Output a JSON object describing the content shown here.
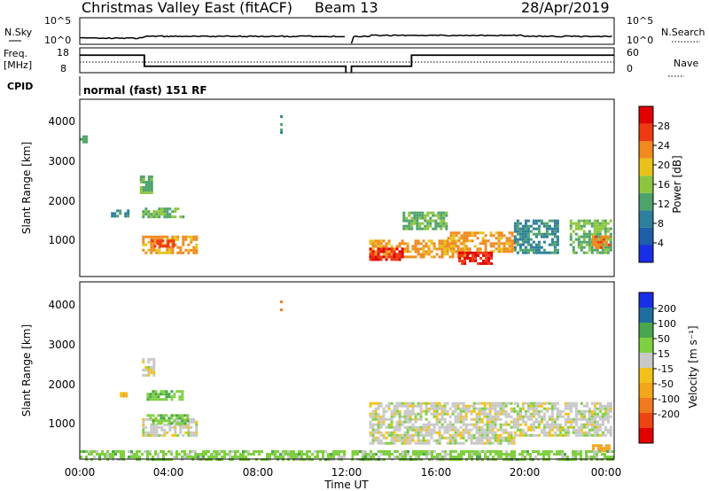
{
  "header": {
    "station": "Christmas Valley East (fitACF)",
    "beam": "Beam 13",
    "date": "28/Apr/2019"
  },
  "sky_panel": {
    "left_label": "N.Sky",
    "left_ticks": [
      "10^5",
      "10^0"
    ],
    "right_label": "N.Search",
    "right_ticks": [
      "10^5",
      "10^0"
    ]
  },
  "freq_panel": {
    "left_label_1": "Freq.",
    "left_label_2": "[MHz]",
    "left_ticks": [
      "18",
      "8"
    ],
    "right_label": "Nave",
    "right_ticks": [
      "60",
      "0"
    ]
  },
  "cpid_panel": {
    "label": "CPID",
    "program": "normal (fast) 151 RF"
  },
  "axes": {
    "x_ticks": [
      "00:00",
      "04:00",
      "08:00",
      "12:00",
      "16:00",
      "20:00",
      "00:00"
    ],
    "x_label": "Time UT",
    "y_label": "Slant Range [km]",
    "y_ticks": [
      "1000",
      "2000",
      "3000",
      "4000"
    ]
  },
  "power_scale": {
    "label": "Power [dB]",
    "ticks": [
      "4",
      "8",
      "12",
      "16",
      "20",
      "24",
      "28"
    ],
    "colors": [
      "#1a2ee6",
      "#1f5fa8",
      "#2e7f9c",
      "#4ea36a",
      "#8cc63f",
      "#e8c21c",
      "#f08a1e",
      "#ee3a12",
      "#e00000"
    ]
  },
  "velocity_scale": {
    "label": "Velocity [m s⁻¹]",
    "ticks": [
      "200",
      "100",
      "50",
      "15",
      "-15",
      "-50",
      "-100",
      "-200"
    ],
    "colors": [
      "#1a2ee6",
      "#1f6ea0",
      "#4aa64e",
      "#7ed040",
      "#c8c8c8",
      "#f2c21a",
      "#f3a51c",
      "#f0781e",
      "#ee4414",
      "#e00000"
    ]
  },
  "chart_data": {
    "type": "heatmap",
    "title": "Christmas Valley East (fitACF) Beam 13 28/Apr/2019",
    "xlabel": "Time UT",
    "ylabel": "Slant Range [km]",
    "xlim": [
      0,
      24
    ],
    "ylim": [
      180,
      4600
    ],
    "grid": false,
    "panels": [
      {
        "quantity": "Power",
        "unit": "dB",
        "color_range": [
          0,
          32
        ],
        "regions": [
          {
            "t_start": 0.0,
            "t_end": 0.3,
            "r_start": 3550,
            "r_end": 3700,
            "value": 12
          },
          {
            "t_start": 2.7,
            "t_end": 3.2,
            "r_start": 2300,
            "r_end": 2700,
            "value": 14
          },
          {
            "t_start": 1.4,
            "t_end": 2.2,
            "r_start": 1700,
            "r_end": 1850,
            "value": 10
          },
          {
            "t_start": 2.8,
            "t_end": 4.6,
            "r_start": 1650,
            "r_end": 1900,
            "value": 14
          },
          {
            "t_start": 2.8,
            "t_end": 5.2,
            "r_start": 800,
            "r_end": 1200,
            "value": 22
          },
          {
            "t_start": 3.2,
            "t_end": 4.2,
            "r_start": 950,
            "r_end": 1100,
            "value": 27
          },
          {
            "t_start": 9.0,
            "t_end": 9.1,
            "r_start": 3800,
            "r_end": 4200,
            "value": 12
          },
          {
            "t_start": 13.0,
            "t_end": 17.5,
            "r_start": 700,
            "r_end": 1100,
            "value": 22
          },
          {
            "t_start": 13.0,
            "t_end": 14.5,
            "r_start": 600,
            "r_end": 900,
            "value": 28
          },
          {
            "t_start": 14.5,
            "t_end": 16.5,
            "r_start": 1400,
            "r_end": 1800,
            "value": 14
          },
          {
            "t_start": 16.5,
            "t_end": 19.5,
            "r_start": 800,
            "r_end": 1300,
            "value": 22
          },
          {
            "t_start": 17.0,
            "t_end": 18.5,
            "r_start": 500,
            "r_end": 800,
            "value": 28
          },
          {
            "t_start": 19.5,
            "t_end": 21.5,
            "r_start": 800,
            "r_end": 1600,
            "value": 10
          },
          {
            "t_start": 22.0,
            "t_end": 23.9,
            "r_start": 800,
            "r_end": 1600,
            "value": 14
          },
          {
            "t_start": 23.0,
            "t_end": 23.8,
            "r_start": 900,
            "r_end": 1200,
            "value": 24
          }
        ]
      },
      {
        "quantity": "Velocity",
        "unit": "m s-1",
        "color_range": [
          -200,
          200
        ],
        "regions": [
          {
            "t_start": 2.8,
            "t_end": 3.3,
            "r_start": 2300,
            "r_end": 2700,
            "value": 0
          },
          {
            "t_start": 1.8,
            "t_end": 2.1,
            "r_start": 1750,
            "r_end": 1850,
            "value": -40
          },
          {
            "t_start": 3.0,
            "t_end": 4.6,
            "r_start": 1700,
            "r_end": 1900,
            "value": 40
          },
          {
            "t_start": 2.8,
            "t_end": 5.2,
            "r_start": 800,
            "r_end": 1200,
            "value": 0
          },
          {
            "t_start": 3.0,
            "t_end": 4.8,
            "r_start": 1100,
            "r_end": 1300,
            "value": 40
          },
          {
            "t_start": 9.0,
            "t_end": 9.1,
            "r_start": 3800,
            "r_end": 4200,
            "value": -150
          },
          {
            "t_start": 13.0,
            "t_end": 19.5,
            "r_start": 600,
            "r_end": 1600,
            "value": 0
          },
          {
            "t_start": 19.5,
            "t_end": 23.9,
            "r_start": 800,
            "r_end": 1600,
            "value": 0
          },
          {
            "t_start": 23.0,
            "t_end": 23.8,
            "r_start": 400,
            "r_end": 550,
            "value": -80
          },
          {
            "t_start": 0.0,
            "t_end": 24.0,
            "r_start": 180,
            "r_end": 400,
            "value": 30
          }
        ]
      }
    ],
    "nsky_mean": 10,
    "freq_steps": [
      {
        "t_start": 0.0,
        "t_end": 2.9,
        "value": 15.5
      },
      {
        "t_start": 2.9,
        "t_end": 14.9,
        "value": 10.5
      },
      {
        "t_start": 14.9,
        "t_end": 24.0,
        "value": 15.5
      }
    ],
    "data_gap": [
      11.95,
      12.2
    ]
  }
}
